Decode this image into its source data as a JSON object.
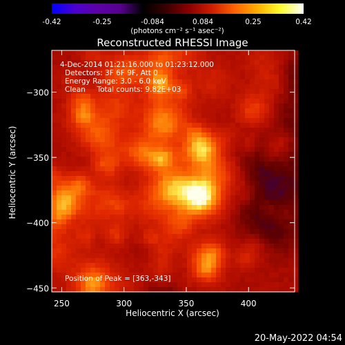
{
  "colorbar": {
    "ticks": [
      "-0.42",
      "-0.25",
      "-0.084",
      "0.084",
      "0.25",
      "0.42"
    ],
    "units": "(photons cm⁻² s⁻¹ asec⁻²)",
    "colors": [
      "#0000ff",
      "#4a00d0",
      "#5e00a8",
      "#560090",
      "#000000",
      "#3a0000",
      "#8c0000",
      "#d01e00",
      "#ff6400",
      "#ffb000",
      "#ffff30",
      "#ffffff"
    ]
  },
  "chart_data": {
    "type": "heatmap",
    "title": "Reconstructed RHESSI Image",
    "xlabel": "Heliocentric X (arcsec)",
    "ylabel": "Heliocentric Y (arcsec)",
    "xlim": [
      242,
      437
    ],
    "ylim": [
      -453,
      -268
    ],
    "xticks": [
      250,
      300,
      350,
      400
    ],
    "yticks": [
      -300,
      -350,
      -400,
      -450
    ],
    "xtick_labels": [
      "250",
      "300",
      "350",
      "400"
    ],
    "ytick_labels": [
      "−300",
      "−350",
      "−400",
      "−450"
    ],
    "peak": [
      363,
      -343
    ],
    "zlim": [
      -0.42,
      0.42
    ],
    "annotations": {
      "time": "4-Dec-2014 01:21:16.000 to 01:23:12.000",
      "detectors": "Detectors: 3F 6F 9F, Att 0",
      "energy": "Energy Range: 3.0 - 6.0 keV",
      "method": "Clean     Total counts: 9.82E+03",
      "peak_text": "Position of Peak = [363,-343]"
    }
  },
  "footer": {
    "date": "20-May-2022 04:54"
  }
}
